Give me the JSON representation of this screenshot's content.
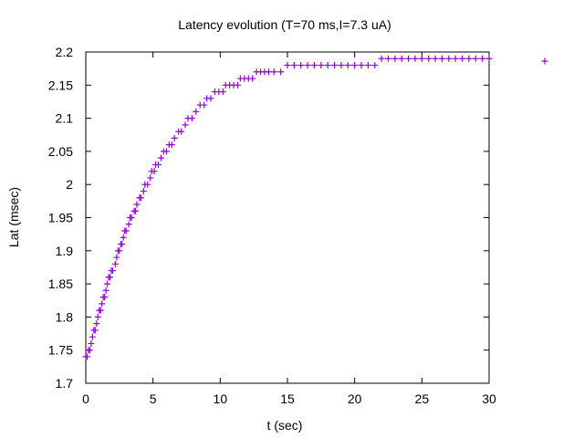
{
  "colors": {
    "series": "#9400d3",
    "axis": "#000000",
    "background": "#ffffff"
  },
  "chart_data": {
    "type": "scatter",
    "title": "Latency evolution (T=70 ms,I=7.3 uA)",
    "xlabel": "t (sec)",
    "ylabel": "Lat (msec)",
    "xlim": [
      0,
      30
    ],
    "ylim": [
      1.7,
      2.2
    ],
    "x_ticks": [
      0,
      5,
      10,
      15,
      20,
      25,
      30
    ],
    "x_tick_labels": [
      "0",
      "5",
      "10",
      "15",
      "20",
      "25",
      "30"
    ],
    "y_ticks": [
      1.7,
      1.75,
      1.8,
      1.85,
      1.9,
      1.95,
      2.0,
      2.05,
      2.1,
      2.15,
      2.2
    ],
    "y_tick_labels": [
      "1.7",
      "1.75",
      "1.8",
      "1.85",
      "1.9",
      "1.95",
      "2",
      "2.05",
      "2.1",
      "2.15",
      "2.2"
    ],
    "grid": false,
    "legend": {
      "position": "top-right",
      "marker": "+",
      "entries": [
        ""
      ]
    },
    "series": [
      {
        "marker": "+",
        "color": "#9400d3",
        "points": [
          [
            0.0,
            1.74
          ],
          [
            0.1,
            1.74
          ],
          [
            0.2,
            1.75
          ],
          [
            0.3,
            1.75
          ],
          [
            0.4,
            1.76
          ],
          [
            0.5,
            1.77
          ],
          [
            0.6,
            1.78
          ],
          [
            0.7,
            1.78
          ],
          [
            0.8,
            1.79
          ],
          [
            0.9,
            1.8
          ],
          [
            1.0,
            1.81
          ],
          [
            1.1,
            1.81
          ],
          [
            1.2,
            1.82
          ],
          [
            1.3,
            1.83
          ],
          [
            1.4,
            1.83
          ],
          [
            1.5,
            1.84
          ],
          [
            1.6,
            1.85
          ],
          [
            1.7,
            1.86
          ],
          [
            1.8,
            1.86
          ],
          [
            1.9,
            1.87
          ],
          [
            2.0,
            1.87
          ],
          [
            2.2,
            1.88
          ],
          [
            2.3,
            1.89
          ],
          [
            2.4,
            1.9
          ],
          [
            2.5,
            1.9
          ],
          [
            2.6,
            1.91
          ],
          [
            2.7,
            1.91
          ],
          [
            2.8,
            1.92
          ],
          [
            2.9,
            1.93
          ],
          [
            3.0,
            1.93
          ],
          [
            3.2,
            1.94
          ],
          [
            3.3,
            1.95
          ],
          [
            3.4,
            1.95
          ],
          [
            3.6,
            1.96
          ],
          [
            3.7,
            1.96
          ],
          [
            3.8,
            1.97
          ],
          [
            4.0,
            1.98
          ],
          [
            4.1,
            1.98
          ],
          [
            4.3,
            1.99
          ],
          [
            4.4,
            2.0
          ],
          [
            4.6,
            2.0
          ],
          [
            4.8,
            2.01
          ],
          [
            4.9,
            2.02
          ],
          [
            5.1,
            2.02
          ],
          [
            5.2,
            2.03
          ],
          [
            5.4,
            2.03
          ],
          [
            5.6,
            2.04
          ],
          [
            5.8,
            2.05
          ],
          [
            6.0,
            2.05
          ],
          [
            6.2,
            2.06
          ],
          [
            6.4,
            2.06
          ],
          [
            6.6,
            2.07
          ],
          [
            6.9,
            2.08
          ],
          [
            7.1,
            2.08
          ],
          [
            7.4,
            2.09
          ],
          [
            7.6,
            2.1
          ],
          [
            7.9,
            2.1
          ],
          [
            8.2,
            2.11
          ],
          [
            8.5,
            2.12
          ],
          [
            8.8,
            2.12
          ],
          [
            9.0,
            2.13
          ],
          [
            9.3,
            2.13
          ],
          [
            9.6,
            2.14
          ],
          [
            9.9,
            2.14
          ],
          [
            10.2,
            2.14
          ],
          [
            10.4,
            2.15
          ],
          [
            10.7,
            2.15
          ],
          [
            11.0,
            2.15
          ],
          [
            11.3,
            2.15
          ],
          [
            11.5,
            2.16
          ],
          [
            11.8,
            2.16
          ],
          [
            12.1,
            2.16
          ],
          [
            12.4,
            2.16
          ],
          [
            12.7,
            2.17
          ],
          [
            13.0,
            2.17
          ],
          [
            13.3,
            2.17
          ],
          [
            13.6,
            2.17
          ],
          [
            14.0,
            2.17
          ],
          [
            14.5,
            2.17
          ],
          [
            15.0,
            2.18
          ],
          [
            15.5,
            2.18
          ],
          [
            16.0,
            2.18
          ],
          [
            16.5,
            2.18
          ],
          [
            17.0,
            2.18
          ],
          [
            17.5,
            2.18
          ],
          [
            18.0,
            2.18
          ],
          [
            18.5,
            2.18
          ],
          [
            19.0,
            2.18
          ],
          [
            19.5,
            2.18
          ],
          [
            20.0,
            2.18
          ],
          [
            20.5,
            2.18
          ],
          [
            21.0,
            2.18
          ],
          [
            21.5,
            2.18
          ],
          [
            22.0,
            2.19
          ],
          [
            22.5,
            2.19
          ],
          [
            23.0,
            2.19
          ],
          [
            23.5,
            2.19
          ],
          [
            24.0,
            2.19
          ],
          [
            24.5,
            2.19
          ],
          [
            25.0,
            2.19
          ],
          [
            25.5,
            2.19
          ],
          [
            26.0,
            2.19
          ],
          [
            26.5,
            2.19
          ],
          [
            27.0,
            2.19
          ],
          [
            27.5,
            2.19
          ],
          [
            28.0,
            2.19
          ],
          [
            28.5,
            2.19
          ],
          [
            29.0,
            2.19
          ],
          [
            29.5,
            2.19
          ],
          [
            30.0,
            2.19
          ]
        ]
      }
    ]
  }
}
